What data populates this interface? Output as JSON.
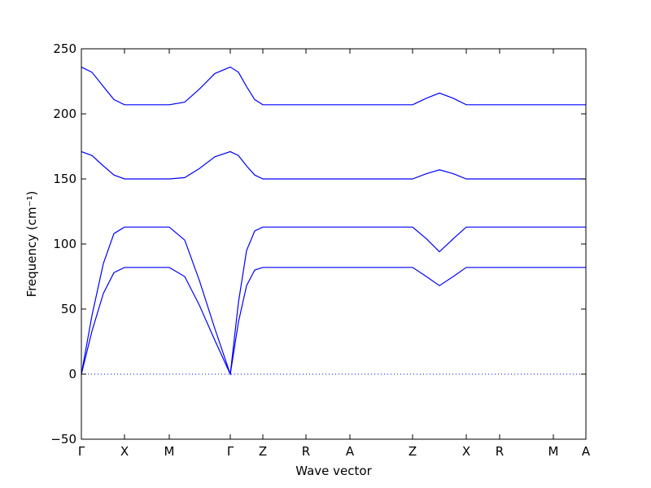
{
  "chart_data": {
    "type": "line",
    "x_label": "Wave vector",
    "y_label": "Frequency (cm⁻¹)",
    "xlim": [
      0,
      6.2
    ],
    "ylim": [
      -50,
      250
    ],
    "xticks": [
      {
        "value": 0,
        "label": "Γ"
      },
      {
        "value": 0.53,
        "label": "X"
      },
      {
        "value": 1.08,
        "label": "M"
      },
      {
        "value": 1.83,
        "label": "Γ"
      },
      {
        "value": 2.23,
        "label": "Z"
      },
      {
        "value": 2.76,
        "label": "R"
      },
      {
        "value": 3.3,
        "label": "A"
      },
      {
        "value": 4.07,
        "label": "Z"
      },
      {
        "value": 4.73,
        "label": "X"
      },
      {
        "value": 5.14,
        "label": "R"
      },
      {
        "value": 5.8,
        "label": "M"
      },
      {
        "value": 6.2,
        "label": "A"
      }
    ],
    "yticks": [
      {
        "value": -50,
        "label": "−50"
      },
      0,
      50,
      100,
      150,
      200,
      250
    ],
    "zero_line": 0,
    "x": [
      0,
      0.13,
      0.27,
      0.4,
      0.53,
      1.08,
      1.27,
      1.45,
      1.64,
      1.83,
      1.93,
      2.03,
      2.13,
      2.23,
      4.07,
      4.24,
      4.4,
      4.57,
      4.73,
      6.2
    ],
    "color": "#0000ff",
    "series": [
      {
        "values": [
          236,
          232,
          221,
          211,
          207,
          207,
          209,
          219,
          231,
          236,
          232,
          221,
          211,
          207,
          207,
          212,
          216,
          212,
          207,
          207
        ]
      },
      {
        "values": [
          171,
          168,
          160,
          153,
          150,
          150,
          151,
          158,
          167,
          171,
          168,
          160,
          153,
          150,
          150,
          154,
          157,
          154,
          150,
          150
        ]
      },
      {
        "values": [
          0,
          45,
          85,
          108,
          113,
          113,
          103,
          72,
          35,
          0,
          55,
          95,
          110,
          113,
          113,
          104,
          94,
          104,
          113,
          113
        ]
      },
      {
        "values": [
          0,
          33,
          62,
          78,
          82,
          82,
          75,
          53,
          26,
          0,
          40,
          68,
          80,
          82,
          82,
          75,
          68,
          75,
          82,
          82
        ]
      }
    ]
  }
}
